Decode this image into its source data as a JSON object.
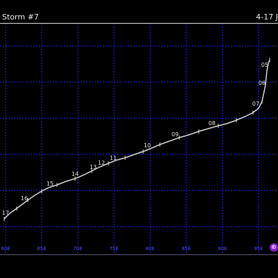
{
  "header": {
    "storm_name": "Storm #7",
    "date_range": "4-17 J"
  },
  "map": {
    "longitude_labels": [
      "60E",
      "65E",
      "70E",
      "75E",
      "80E",
      "85E",
      "90E",
      "95E"
    ],
    "grid_color": "#2222ff",
    "track_color": "#d9d9d9",
    "label_color": "#e6e6e6"
  },
  "track": {
    "day_labels": [
      "17",
      "16",
      "15",
      "14",
      "13",
      "12",
      "11",
      "10",
      "09",
      "08",
      "07",
      "06",
      "05"
    ]
  },
  "copyright_icon": {
    "name": "copyright-icon",
    "glyph": "©",
    "color": "#8b1fd1"
  }
}
